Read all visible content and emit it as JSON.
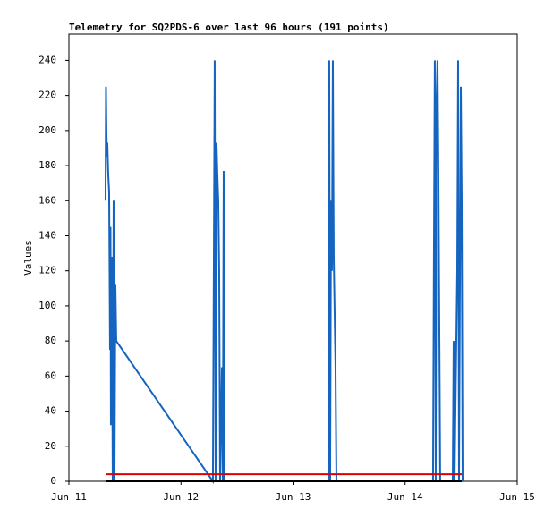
{
  "chart_data": {
    "type": "line",
    "title": "Telemetry for SQ2PDS-6 over last 96 hours (191 points)",
    "ylabel": "Values",
    "xlim": [
      0,
      4
    ],
    "xticks": [
      {
        "value": 0,
        "label": "Jun 11"
      },
      {
        "value": 1,
        "label": "Jun 12"
      },
      {
        "value": 2,
        "label": "Jun 13"
      },
      {
        "value": 3,
        "label": "Jun 14"
      },
      {
        "value": 4,
        "label": "Jun 15"
      }
    ],
    "ylim": [
      0,
      255
    ],
    "yticks": [
      0,
      20,
      40,
      60,
      80,
      100,
      120,
      140,
      160,
      180,
      200,
      220,
      240
    ],
    "series": [
      {
        "color": "#1565c0",
        "x": [
          0.327,
          0.331,
          0.335,
          0.339,
          0.343,
          0.351,
          0.359,
          0.367,
          0.371,
          0.375,
          0.383,
          0.391,
          0.399,
          0.407,
          0.415,
          0.423,
          1.285,
          1.301,
          1.309,
          1.317,
          1.325,
          1.333,
          1.341,
          1.349,
          1.365,
          1.373,
          1.381,
          1.389,
          2.315,
          2.323,
          2.331,
          2.339,
          2.347,
          2.355,
          2.363,
          2.379,
          2.387,
          3.249,
          3.257,
          3.265,
          3.273,
          3.281,
          3.289,
          3.297,
          3.305,
          3.313,
          3.425,
          3.433,
          3.441,
          3.465,
          3.473,
          3.481,
          3.497,
          3.505,
          3.513
        ],
        "values": [
          160,
          225,
          200,
          185,
          193,
          175,
          165,
          75,
          145,
          32,
          128,
          0,
          160,
          0,
          112,
          80,
          0,
          240,
          0,
          193,
          175,
          160,
          120,
          0,
          65,
          0,
          177,
          0,
          0,
          240,
          0,
          160,
          120,
          240,
          128,
          65,
          0,
          0,
          128,
          240,
          0,
          218,
          240,
          178,
          90,
          0,
          0,
          80,
          0,
          120,
          240,
          0,
          225,
          160,
          0
        ]
      },
      {
        "color": "#e00000",
        "x": [
          0.327,
          3.505
        ],
        "values": [
          4,
          4
        ]
      },
      {
        "color": "#000000",
        "x": [
          0.327,
          3.505
        ],
        "values": [
          0,
          0
        ]
      }
    ]
  }
}
